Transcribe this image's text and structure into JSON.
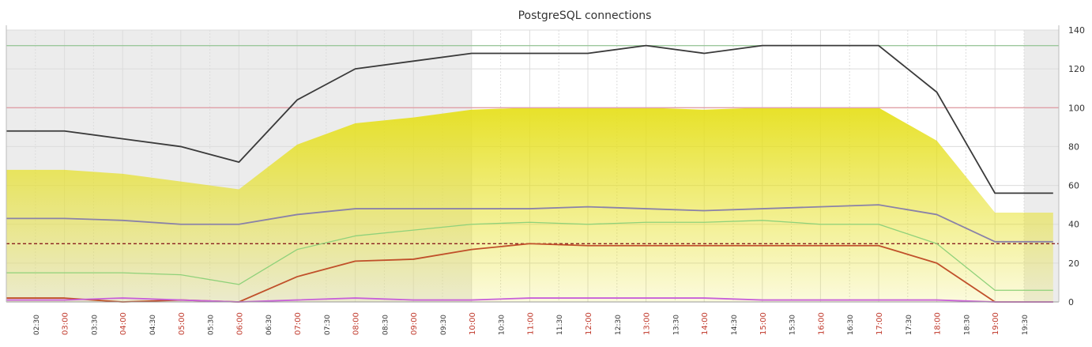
{
  "chart_data": {
    "type": "line",
    "title": "PostgreSQL connections",
    "ylim": [
      0,
      140
    ],
    "y_ticks": [
      0,
      20,
      40,
      60,
      80,
      100,
      120,
      140
    ],
    "x": [
      "02:30",
      "03:00",
      "03:30",
      "04:00",
      "04:30",
      "05:00",
      "05:30",
      "06:00",
      "06:30",
      "07:00",
      "07:30",
      "08:00",
      "08:30",
      "09:00",
      "09:30",
      "10:00",
      "10:30",
      "11:00",
      "11:30",
      "12:00",
      "12:30",
      "13:00",
      "13:30",
      "14:00",
      "14:30",
      "15:00",
      "15:30",
      "16:00",
      "16:30",
      "17:00",
      "17:30",
      "18:00",
      "18:30",
      "19:00",
      "19:30"
    ],
    "series": [
      {
        "color": "#e6e01e",
        "kind": "area",
        "points": [
          [
            0,
            68
          ],
          [
            2,
            68
          ],
          [
            4,
            66
          ],
          [
            6,
            62
          ],
          [
            8,
            58
          ],
          [
            10,
            81
          ],
          [
            12,
            92
          ],
          [
            14,
            95
          ],
          [
            16,
            99
          ],
          [
            18,
            100
          ],
          [
            20,
            100
          ],
          [
            22,
            100
          ],
          [
            24,
            99
          ],
          [
            26,
            100
          ],
          [
            28,
            100
          ],
          [
            30,
            100
          ],
          [
            32,
            83
          ],
          [
            34,
            46
          ],
          [
            36,
            46
          ]
        ]
      },
      {
        "color": "#3a3a3a",
        "kind": "line",
        "width": 1.8,
        "points": [
          [
            0,
            88
          ],
          [
            2,
            88
          ],
          [
            4,
            84
          ],
          [
            6,
            80
          ],
          [
            8,
            72
          ],
          [
            10,
            104
          ],
          [
            12,
            120
          ],
          [
            14,
            124
          ],
          [
            16,
            128
          ],
          [
            18,
            128
          ],
          [
            20,
            128
          ],
          [
            22,
            132
          ],
          [
            24,
            128
          ],
          [
            26,
            132
          ],
          [
            28,
            132
          ],
          [
            30,
            132
          ],
          [
            32,
            108
          ],
          [
            34,
            56
          ],
          [
            36,
            56
          ]
        ]
      },
      {
        "color": "#8a82a8",
        "kind": "line",
        "width": 1.8,
        "points": [
          [
            0,
            43
          ],
          [
            2,
            43
          ],
          [
            4,
            42
          ],
          [
            6,
            40
          ],
          [
            8,
            40
          ],
          [
            10,
            45
          ],
          [
            12,
            48
          ],
          [
            14,
            48
          ],
          [
            16,
            48
          ],
          [
            18,
            48
          ],
          [
            20,
            49
          ],
          [
            22,
            48
          ],
          [
            24,
            47
          ],
          [
            26,
            48
          ],
          [
            28,
            49
          ],
          [
            30,
            50
          ],
          [
            32,
            45
          ],
          [
            34,
            31
          ],
          [
            36,
            31
          ]
        ]
      },
      {
        "color": "#8fd17a",
        "kind": "line",
        "width": 1.3,
        "points": [
          [
            0,
            15
          ],
          [
            2,
            15
          ],
          [
            4,
            15
          ],
          [
            6,
            14
          ],
          [
            8,
            9
          ],
          [
            10,
            27
          ],
          [
            12,
            34
          ],
          [
            14,
            37
          ],
          [
            16,
            40
          ],
          [
            18,
            41
          ],
          [
            20,
            40
          ],
          [
            22,
            41
          ],
          [
            24,
            41
          ],
          [
            26,
            42
          ],
          [
            28,
            40
          ],
          [
            30,
            40
          ],
          [
            32,
            30
          ],
          [
            34,
            6
          ],
          [
            36,
            6
          ]
        ]
      },
      {
        "color": "#c0502a",
        "kind": "line",
        "width": 1.8,
        "points": [
          [
            0,
            2
          ],
          [
            2,
            2
          ],
          [
            4,
            0
          ],
          [
            6,
            1
          ],
          [
            8,
            0
          ],
          [
            10,
            13
          ],
          [
            12,
            21
          ],
          [
            14,
            22
          ],
          [
            16,
            27
          ],
          [
            18,
            30
          ],
          [
            20,
            29
          ],
          [
            22,
            29
          ],
          [
            24,
            29
          ],
          [
            26,
            29
          ],
          [
            28,
            29
          ],
          [
            30,
            29
          ],
          [
            32,
            20
          ],
          [
            34,
            0
          ],
          [
            36,
            0
          ]
        ]
      },
      {
        "color": "#c860d8",
        "kind": "line",
        "width": 1.8,
        "points": [
          [
            0,
            1
          ],
          [
            2,
            1
          ],
          [
            4,
            2
          ],
          [
            6,
            1
          ],
          [
            8,
            0
          ],
          [
            10,
            1
          ],
          [
            12,
            2
          ],
          [
            14,
            1
          ],
          [
            16,
            1
          ],
          [
            18,
            2
          ],
          [
            20,
            2
          ],
          [
            22,
            2
          ],
          [
            24,
            2
          ],
          [
            26,
            1
          ],
          [
            28,
            1
          ],
          [
            30,
            1
          ],
          [
            32,
            1
          ],
          [
            34,
            0
          ],
          [
            36,
            0
          ]
        ]
      }
    ],
    "thresholds": [
      {
        "y": 132,
        "color": "#9cc89c",
        "style": "solid"
      },
      {
        "y": 100,
        "color": "#e0a0a8",
        "style": "solid"
      },
      {
        "y": 30,
        "color": "#8a2020",
        "style": "dashed"
      }
    ],
    "shaded_x_ranges": [
      [
        0,
        16
      ],
      [
        35,
        36
      ]
    ],
    "grid": true
  }
}
